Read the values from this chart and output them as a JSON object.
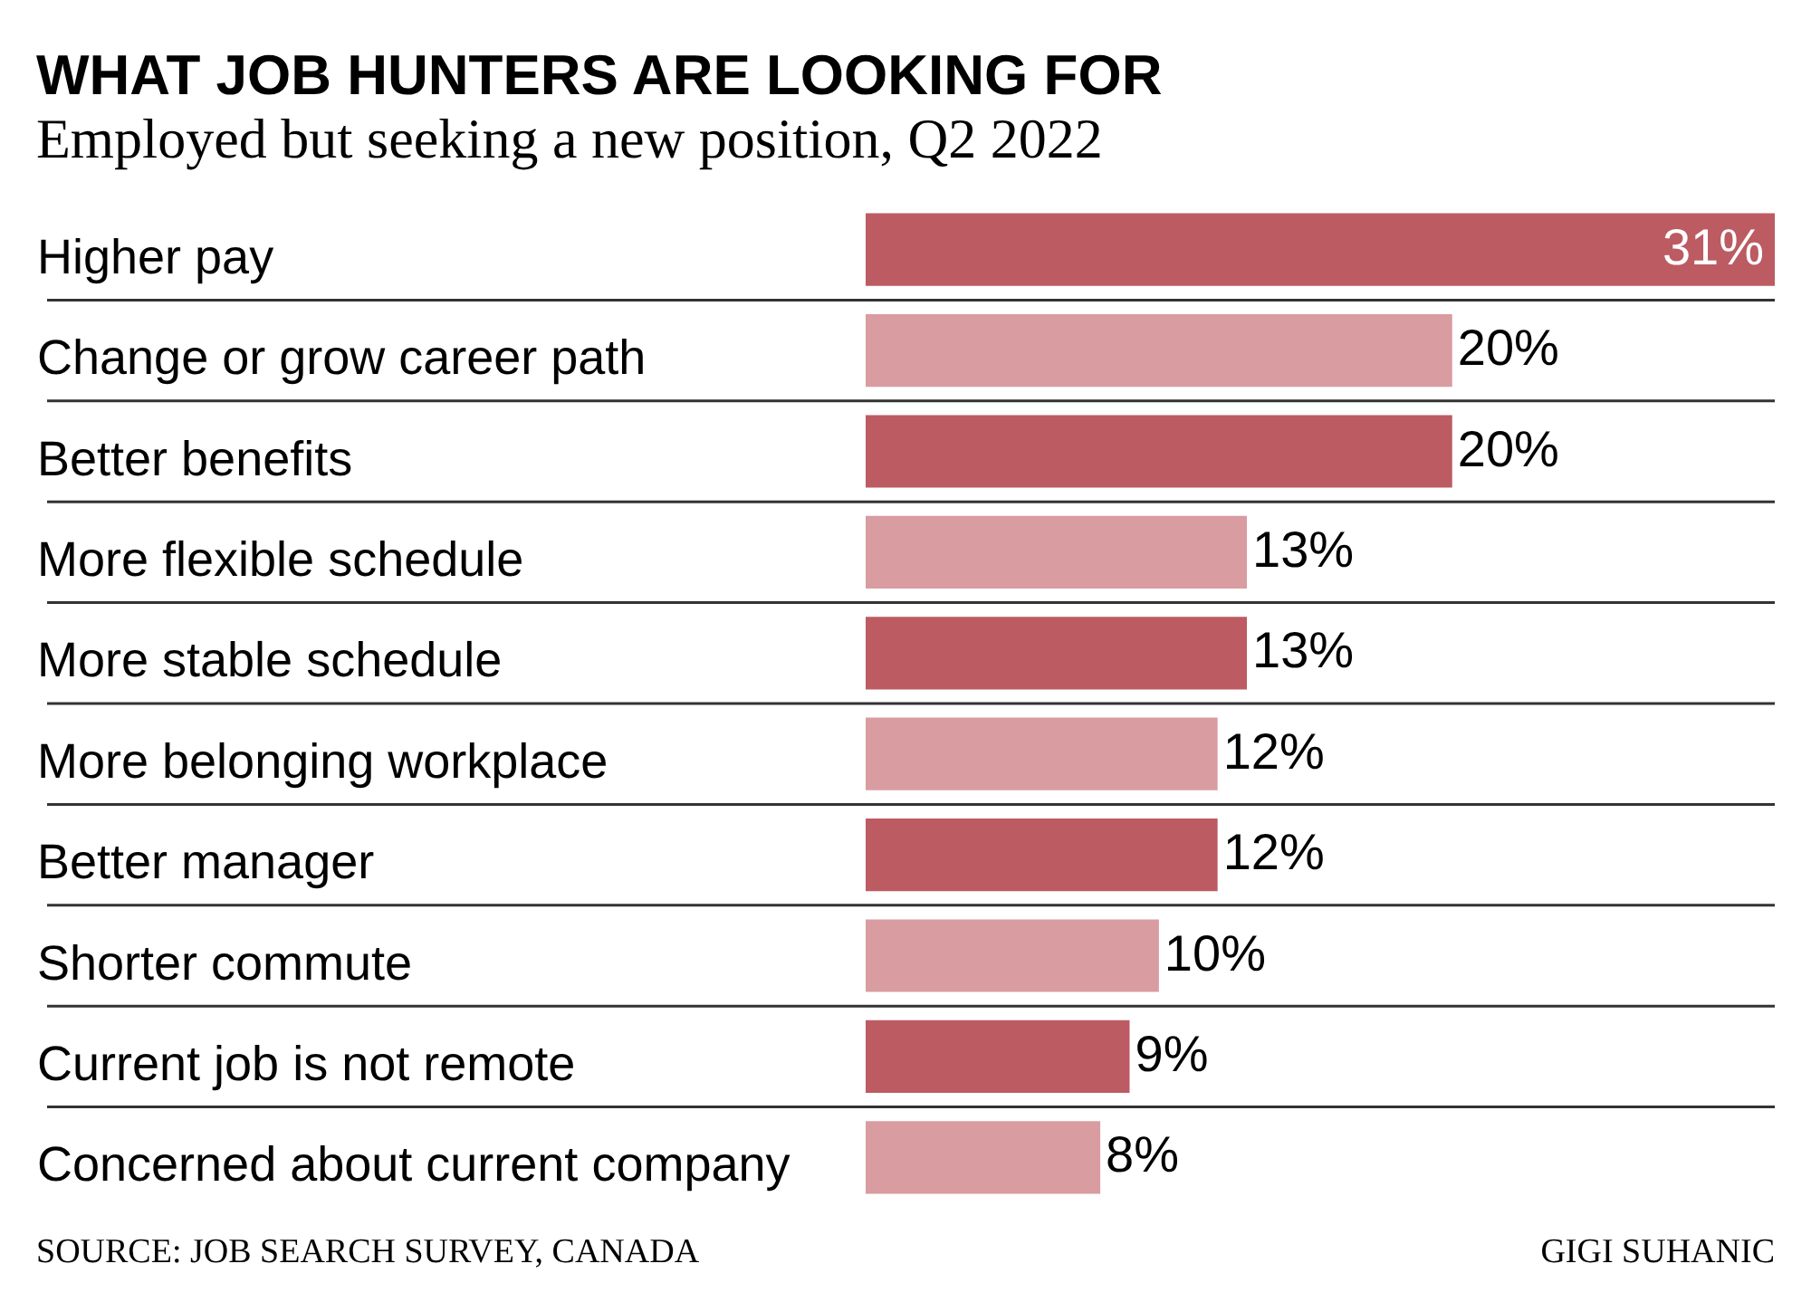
{
  "chart_data": {
    "type": "bar",
    "orientation": "horizontal",
    "title": "WHAT JOB HUNTERS ARE LOOKING FOR",
    "subtitle": "Employed but seeking a new position, Q2 2022",
    "categories": [
      "Higher pay",
      "Change or grow career path",
      "Better benefits",
      "More flexible schedule",
      "More stable schedule",
      "More belonging workplace",
      "Better manager",
      "Shorter commute",
      "Current job is not remote",
      "Concerned about current company"
    ],
    "values": [
      31,
      20,
      20,
      13,
      13,
      12,
      12,
      10,
      9,
      8
    ],
    "colors": [
      "#bc5b62",
      "#d99ca1",
      "#bc5b62",
      "#d99ca1",
      "#bc5b62",
      "#d99ca1",
      "#bc5b62",
      "#d99ca1",
      "#bc5b62",
      "#d99ca1"
    ],
    "value_labels": [
      "31%",
      "20%",
      "20%",
      "13%",
      "13%",
      "12%",
      "12%",
      "10%",
      "9%",
      "8%"
    ],
    "grid": "y",
    "tick_labels": "y",
    "annotations": [
      "SOURCE: JOB SEARCH SURVEY, CANADA",
      "GIGI SUHANIC"
    ]
  }
}
